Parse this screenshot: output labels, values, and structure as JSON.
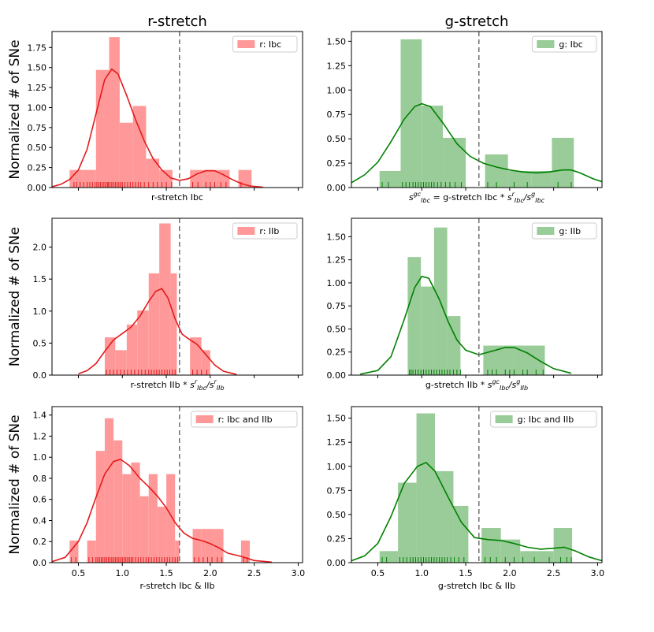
{
  "figure": {
    "column_titles": [
      "r-stretch",
      "g-stretch"
    ]
  },
  "chart_data": [
    {
      "type": "histogram+kde",
      "row": 0,
      "col": 0,
      "color": "#e31a1c",
      "bar_color": "#ff9999",
      "legend": "r: Ibc",
      "xlabel": "r-stretch Ibc",
      "xlabel_math": "",
      "ylabel": "Normalized # of SNe",
      "xlim": [
        0.2,
        3.05
      ],
      "ylim": [
        0,
        1.95
      ],
      "yticks": [
        0.0,
        0.25,
        0.5,
        0.75,
        1.0,
        1.25,
        1.5,
        1.75
      ],
      "ytick_labels": [
        "0.00",
        "0.25",
        "0.50",
        "0.75",
        "1.00",
        "1.25",
        "1.50",
        "1.75"
      ],
      "xticks": [
        0.5,
        1.0,
        1.5,
        2.0,
        2.5,
        3.0
      ],
      "xtick_labels": [],
      "bins": [
        [
          0.4,
          0.55,
          0.22
        ],
        [
          0.55,
          0.7,
          0.22
        ],
        [
          0.7,
          0.85,
          1.47
        ],
        [
          0.85,
          0.97,
          1.88
        ],
        [
          0.97,
          1.12,
          0.81
        ],
        [
          1.12,
          1.27,
          1.02
        ],
        [
          1.27,
          1.42,
          0.36
        ],
        [
          1.42,
          1.57,
          0.22
        ],
        [
          1.77,
          1.92,
          0.22
        ],
        [
          1.92,
          2.07,
          0.22
        ],
        [
          2.07,
          2.22,
          0.22
        ],
        [
          2.32,
          2.47,
          0.22
        ]
      ],
      "kde": [
        [
          0.2,
          0.01
        ],
        [
          0.3,
          0.04
        ],
        [
          0.4,
          0.1
        ],
        [
          0.5,
          0.22
        ],
        [
          0.6,
          0.48
        ],
        [
          0.7,
          0.92
        ],
        [
          0.8,
          1.35
        ],
        [
          0.88,
          1.48
        ],
        [
          0.95,
          1.42
        ],
        [
          1.05,
          1.15
        ],
        [
          1.15,
          0.85
        ],
        [
          1.25,
          0.58
        ],
        [
          1.35,
          0.36
        ],
        [
          1.45,
          0.22
        ],
        [
          1.55,
          0.12
        ],
        [
          1.65,
          0.09
        ],
        [
          1.75,
          0.11
        ],
        [
          1.85,
          0.17
        ],
        [
          1.95,
          0.21
        ],
        [
          2.05,
          0.21
        ],
        [
          2.15,
          0.16
        ],
        [
          2.25,
          0.1
        ],
        [
          2.35,
          0.05
        ],
        [
          2.45,
          0.02
        ],
        [
          2.6,
          0.005
        ]
      ],
      "rug": [
        0.45,
        0.48,
        0.52,
        0.56,
        0.6,
        0.63,
        0.66,
        0.69,
        0.71,
        0.73,
        0.75,
        0.77,
        0.79,
        0.81,
        0.83,
        0.84,
        0.86,
        0.88,
        0.9,
        0.92,
        0.94,
        0.96,
        0.98,
        1.0,
        1.03,
        1.06,
        1.09,
        1.12,
        1.15,
        1.18,
        1.21,
        1.25,
        1.3,
        1.35,
        1.4,
        1.45,
        1.5,
        1.56,
        1.8,
        1.86,
        1.95,
        2.0,
        2.05,
        2.12,
        2.18,
        2.35
      ],
      "vline": 1.65
    },
    {
      "type": "histogram+kde",
      "row": 0,
      "col": 1,
      "color": "#008000",
      "bar_color": "#99cc99",
      "legend": "g: Ibc",
      "xlabel": "= g-stretch Ibc *",
      "xlabel_math": "s_Ibc^gc ... s_Ibc^r/s_Ibc^g",
      "ylabel": "",
      "xlim": [
        0.2,
        3.05
      ],
      "ylim": [
        0,
        1.6
      ],
      "yticks": [
        0.0,
        0.25,
        0.5,
        0.75,
        1.0,
        1.25,
        1.5
      ],
      "ytick_labels": [
        "0.00",
        "0.25",
        "0.50",
        "0.75",
        "1.00",
        "1.25",
        "1.50"
      ],
      "xticks": [
        0.5,
        1.0,
        1.5,
        2.0,
        2.5,
        3.0
      ],
      "xtick_labels": [],
      "bins": [
        [
          0.52,
          0.76,
          0.17
        ],
        [
          0.76,
          1.0,
          1.52
        ],
        [
          1.0,
          1.24,
          0.84
        ],
        [
          1.24,
          1.5,
          0.51
        ],
        [
          1.72,
          1.98,
          0.34
        ],
        [
          1.98,
          2.25,
          0.17
        ],
        [
          2.25,
          2.48,
          0.17
        ],
        [
          2.48,
          2.73,
          0.51
        ]
      ],
      "kde": [
        [
          0.2,
          0.05
        ],
        [
          0.35,
          0.13
        ],
        [
          0.5,
          0.26
        ],
        [
          0.65,
          0.47
        ],
        [
          0.8,
          0.7
        ],
        [
          0.92,
          0.83
        ],
        [
          1.0,
          0.86
        ],
        [
          1.1,
          0.83
        ],
        [
          1.25,
          0.65
        ],
        [
          1.4,
          0.45
        ],
        [
          1.55,
          0.32
        ],
        [
          1.7,
          0.25
        ],
        [
          1.85,
          0.21
        ],
        [
          2.0,
          0.18
        ],
        [
          2.15,
          0.16
        ],
        [
          2.3,
          0.15
        ],
        [
          2.45,
          0.16
        ],
        [
          2.6,
          0.18
        ],
        [
          2.7,
          0.18
        ],
        [
          2.8,
          0.15
        ],
        [
          2.95,
          0.09
        ],
        [
          3.05,
          0.06
        ]
      ],
      "rug": [
        0.55,
        0.62,
        0.78,
        0.82,
        0.86,
        0.9,
        0.93,
        0.96,
        0.99,
        1.02,
        1.05,
        1.08,
        1.11,
        1.14,
        1.18,
        1.22,
        1.27,
        1.32,
        1.38,
        1.45,
        1.75,
        1.85,
        2.05,
        2.2,
        2.55,
        2.7
      ],
      "vline": 1.65
    },
    {
      "type": "histogram+kde",
      "row": 1,
      "col": 0,
      "color": "#e31a1c",
      "bar_color": "#ff9999",
      "legend": "r: IIb",
      "xlabel": "r-stretch IIb *",
      "xlabel_math": "s_Ibc^r/s_IIb^r",
      "ylabel": "Normalized # of SNe",
      "xlim": [
        0.2,
        3.05
      ],
      "ylim": [
        0,
        2.45
      ],
      "yticks": [
        0.0,
        0.5,
        1.0,
        1.5,
        2.0
      ],
      "ytick_labels": [
        "0.0",
        "0.5",
        "1.0",
        "1.5",
        "2.0"
      ],
      "xticks": [
        0.5,
        1.0,
        1.5,
        2.0,
        2.5,
        3.0
      ],
      "xtick_labels": [],
      "bins": [
        [
          0.8,
          0.92,
          0.59
        ],
        [
          0.92,
          1.05,
          0.39
        ],
        [
          1.05,
          1.17,
          0.79
        ],
        [
          1.17,
          1.3,
          1.01
        ],
        [
          1.3,
          1.42,
          1.59
        ],
        [
          1.42,
          1.55,
          2.37
        ],
        [
          1.55,
          1.62,
          1.59
        ],
        [
          1.77,
          1.9,
          0.59
        ],
        [
          1.9,
          2.0,
          0.39
        ]
      ],
      "kde": [
        [
          0.5,
          0.02
        ],
        [
          0.6,
          0.07
        ],
        [
          0.7,
          0.18
        ],
        [
          0.8,
          0.37
        ],
        [
          0.9,
          0.55
        ],
        [
          1.0,
          0.65
        ],
        [
          1.1,
          0.75
        ],
        [
          1.2,
          0.92
        ],
        [
          1.3,
          1.15
        ],
        [
          1.38,
          1.31
        ],
        [
          1.45,
          1.35
        ],
        [
          1.52,
          1.2
        ],
        [
          1.6,
          0.88
        ],
        [
          1.68,
          0.64
        ],
        [
          1.75,
          0.57
        ],
        [
          1.85,
          0.48
        ],
        [
          1.95,
          0.32
        ],
        [
          2.05,
          0.16
        ],
        [
          2.15,
          0.06
        ],
        [
          2.3,
          0.01
        ]
      ],
      "rug": [
        0.82,
        0.86,
        0.9,
        0.94,
        0.98,
        1.02,
        1.06,
        1.1,
        1.14,
        1.18,
        1.22,
        1.26,
        1.3,
        1.33,
        1.36,
        1.39,
        1.42,
        1.45,
        1.48,
        1.51,
        1.54,
        1.57,
        1.6,
        1.8,
        1.85,
        1.9,
        1.96
      ],
      "vline": 1.65
    },
    {
      "type": "histogram+kde",
      "row": 1,
      "col": 1,
      "color": "#008000",
      "bar_color": "#99cc99",
      "legend": "g: IIb",
      "xlabel": "g-stretch IIb *",
      "xlabel_math": "s_Ibc^gc/s_IIb^g",
      "ylabel": "",
      "xlim": [
        0.2,
        3.05
      ],
      "ylim": [
        0,
        1.7
      ],
      "yticks": [
        0.0,
        0.25,
        0.5,
        0.75,
        1.0,
        1.25,
        1.5
      ],
      "ytick_labels": [
        "0.00",
        "0.25",
        "0.50",
        "0.75",
        "1.00",
        "1.25",
        "1.50"
      ],
      "xticks": [
        0.5,
        1.0,
        1.5,
        2.0,
        2.5,
        3.0
      ],
      "xtick_labels": [],
      "bins": [
        [
          0.84,
          0.99,
          1.28
        ],
        [
          0.99,
          1.14,
          0.96
        ],
        [
          1.14,
          1.29,
          1.6
        ],
        [
          1.29,
          1.44,
          0.64
        ],
        [
          1.7,
          2.05,
          0.32
        ],
        [
          2.05,
          2.4,
          0.32
        ]
      ],
      "kde": [
        [
          0.3,
          0.01
        ],
        [
          0.5,
          0.05
        ],
        [
          0.65,
          0.2
        ],
        [
          0.8,
          0.6
        ],
        [
          0.92,
          0.95
        ],
        [
          1.0,
          1.07
        ],
        [
          1.08,
          1.05
        ],
        [
          1.2,
          0.82
        ],
        [
          1.3,
          0.58
        ],
        [
          1.4,
          0.38
        ],
        [
          1.5,
          0.27
        ],
        [
          1.65,
          0.22
        ],
        [
          1.8,
          0.26
        ],
        [
          1.95,
          0.3
        ],
        [
          2.05,
          0.3
        ],
        [
          2.2,
          0.24
        ],
        [
          2.35,
          0.15
        ],
        [
          2.5,
          0.07
        ],
        [
          2.7,
          0.02
        ]
      ],
      "rug": [
        0.86,
        0.88,
        0.9,
        0.93,
        0.96,
        0.99,
        1.02,
        1.05,
        1.08,
        1.11,
        1.14,
        1.17,
        1.2,
        1.23,
        1.26,
        1.29,
        1.32,
        1.36,
        1.4,
        1.44,
        1.75,
        1.8,
        1.85,
        1.95,
        2.0,
        2.05,
        2.15,
        2.2,
        2.3,
        2.38
      ],
      "vline": 1.65
    },
    {
      "type": "histogram+kde",
      "row": 2,
      "col": 0,
      "color": "#e31a1c",
      "bar_color": "#ff9999",
      "legend": "r: Ibc and IIb",
      "xlabel": "r-stretch Ibc & IIb",
      "xlabel_math": "",
      "ylabel": "Normalized # of SNe",
      "xlim": [
        0.2,
        3.05
      ],
      "ylim": [
        0,
        1.48
      ],
      "yticks": [
        0.0,
        0.2,
        0.4,
        0.6,
        0.8,
        1.0,
        1.2,
        1.4
      ],
      "ytick_labels": [
        "0.0",
        "0.2",
        "0.4",
        "0.6",
        "0.8",
        "1.0",
        "1.2",
        "1.4"
      ],
      "xticks": [
        0.5,
        1.0,
        1.5,
        2.0,
        2.5,
        3.0
      ],
      "xtick_labels": [
        "0.5",
        "1.0",
        "1.5",
        "2.0",
        "2.5",
        "3.0"
      ],
      "bins": [
        [
          0.4,
          0.5,
          0.21
        ],
        [
          0.6,
          0.7,
          0.21
        ],
        [
          0.7,
          0.8,
          1.06
        ],
        [
          0.8,
          0.9,
          1.37
        ],
        [
          0.9,
          1.0,
          1.16
        ],
        [
          1.0,
          1.1,
          0.84
        ],
        [
          1.1,
          1.2,
          0.95
        ],
        [
          1.2,
          1.3,
          0.63
        ],
        [
          1.3,
          1.4,
          0.84
        ],
        [
          1.4,
          1.5,
          0.53
        ],
        [
          1.5,
          1.6,
          0.84
        ],
        [
          1.6,
          1.65,
          0.21
        ],
        [
          1.8,
          1.9,
          0.32
        ],
        [
          1.9,
          2.05,
          0.32
        ],
        [
          2.05,
          2.15,
          0.32
        ],
        [
          2.35,
          2.45,
          0.21
        ]
      ],
      "kde": [
        [
          0.2,
          0.01
        ],
        [
          0.35,
          0.05
        ],
        [
          0.5,
          0.2
        ],
        [
          0.6,
          0.38
        ],
        [
          0.7,
          0.62
        ],
        [
          0.8,
          0.84
        ],
        [
          0.9,
          0.96
        ],
        [
          0.98,
          0.98
        ],
        [
          1.08,
          0.92
        ],
        [
          1.2,
          0.8
        ],
        [
          1.3,
          0.72
        ],
        [
          1.4,
          0.63
        ],
        [
          1.5,
          0.52
        ],
        [
          1.6,
          0.38
        ],
        [
          1.7,
          0.28
        ],
        [
          1.8,
          0.23
        ],
        [
          1.9,
          0.21
        ],
        [
          2.0,
          0.18
        ],
        [
          2.1,
          0.14
        ],
        [
          2.2,
          0.09
        ],
        [
          2.35,
          0.06
        ],
        [
          2.5,
          0.02
        ],
        [
          2.7,
          0.005
        ]
      ],
      "rug": [
        0.42,
        0.47,
        0.62,
        0.66,
        0.7,
        0.72,
        0.74,
        0.76,
        0.78,
        0.8,
        0.82,
        0.84,
        0.86,
        0.88,
        0.9,
        0.92,
        0.94,
        0.96,
        0.98,
        1.0,
        1.02,
        1.04,
        1.06,
        1.08,
        1.1,
        1.12,
        1.15,
        1.18,
        1.21,
        1.24,
        1.27,
        1.3,
        1.33,
        1.36,
        1.39,
        1.42,
        1.45,
        1.48,
        1.51,
        1.54,
        1.57,
        1.6,
        1.63,
        1.82,
        1.87,
        1.92,
        1.97,
        2.02,
        2.08,
        2.13,
        2.38,
        2.42
      ],
      "vline": 1.65
    },
    {
      "type": "histogram+kde",
      "row": 2,
      "col": 1,
      "color": "#008000",
      "bar_color": "#99cc99",
      "legend": "g: Ibc and IIb",
      "xlabel": "g-stretch Ibc & IIb",
      "xlabel_math": "",
      "ylabel": "",
      "xlim": [
        0.2,
        3.05
      ],
      "ylim": [
        0,
        1.62
      ],
      "yticks": [
        0.0,
        0.25,
        0.5,
        0.75,
        1.0,
        1.25,
        1.5
      ],
      "ytick_labels": [
        "0.00",
        "0.25",
        "0.50",
        "0.75",
        "1.00",
        "1.25",
        "1.50"
      ],
      "xticks": [
        0.5,
        1.0,
        1.5,
        2.0,
        2.5,
        3.0
      ],
      "xtick_labels": [
        "0.5",
        "1.0",
        "1.5",
        "2.0",
        "2.5",
        "3.0"
      ],
      "bins": [
        [
          0.52,
          0.73,
          0.12
        ],
        [
          0.73,
          0.94,
          0.83
        ],
        [
          0.94,
          1.15,
          1.55
        ],
        [
          1.15,
          1.36,
          0.95
        ],
        [
          1.36,
          1.53,
          0.59
        ],
        [
          1.68,
          1.9,
          0.36
        ],
        [
          1.9,
          2.12,
          0.24
        ],
        [
          2.12,
          2.31,
          0.12
        ],
        [
          2.31,
          2.5,
          0.12
        ],
        [
          2.5,
          2.71,
          0.36
        ]
      ],
      "kde": [
        [
          0.2,
          0.02
        ],
        [
          0.35,
          0.07
        ],
        [
          0.5,
          0.2
        ],
        [
          0.65,
          0.48
        ],
        [
          0.8,
          0.82
        ],
        [
          0.95,
          1.0
        ],
        [
          1.05,
          1.04
        ],
        [
          1.15,
          0.95
        ],
        [
          1.3,
          0.68
        ],
        [
          1.45,
          0.42
        ],
        [
          1.6,
          0.26
        ],
        [
          1.75,
          0.24
        ],
        [
          1.9,
          0.23
        ],
        [
          2.05,
          0.2
        ],
        [
          2.2,
          0.16
        ],
        [
          2.35,
          0.14
        ],
        [
          2.5,
          0.15
        ],
        [
          2.62,
          0.16
        ],
        [
          2.75,
          0.12
        ],
        [
          2.9,
          0.06
        ],
        [
          3.05,
          0.02
        ]
      ],
      "rug": [
        0.55,
        0.6,
        0.75,
        0.79,
        0.83,
        0.87,
        0.9,
        0.93,
        0.96,
        0.99,
        1.02,
        1.05,
        1.08,
        1.11,
        1.14,
        1.17,
        1.2,
        1.23,
        1.26,
        1.29,
        1.33,
        1.37,
        1.42,
        1.48,
        1.72,
        1.78,
        1.85,
        1.95,
        2.05,
        2.15,
        2.28,
        2.45,
        2.58,
        2.65,
        2.7
      ],
      "vline": 1.65
    }
  ]
}
